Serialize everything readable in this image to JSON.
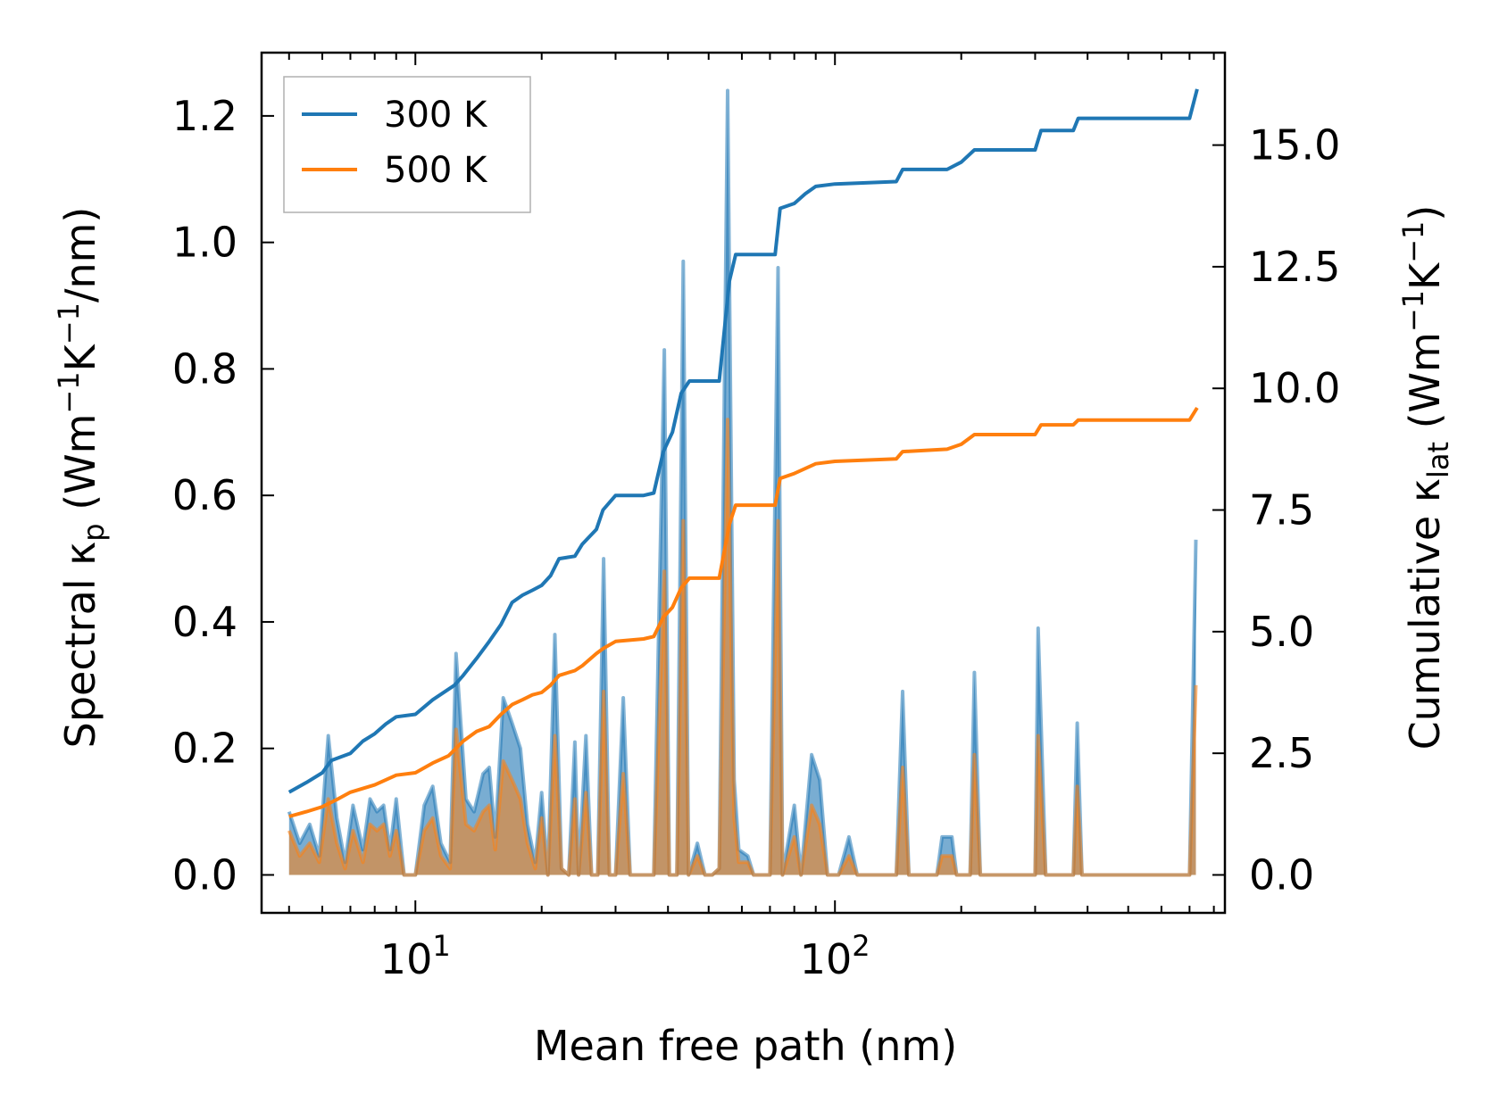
{
  "chart_data": {
    "type": "line",
    "xscale": "log",
    "xlabel": "Mean free path (nm)",
    "xlim": [
      4.3,
      850
    ],
    "xticks": [
      {
        "value": 10,
        "base": "10",
        "exp": "1"
      },
      {
        "value": 100,
        "base": "10",
        "exp": "2"
      }
    ],
    "ylabel_left": {
      "pre": "Spectral κ",
      "sub": "p",
      "post": " (Wm",
      "sup1": "−1",
      "mid": "K",
      "sup2": "−1",
      "end": "/nm)"
    },
    "ylim_left": [
      -0.06,
      1.3
    ],
    "yticks_left": [
      "0.0",
      "0.2",
      "0.4",
      "0.6",
      "0.8",
      "1.0",
      "1.2"
    ],
    "ylabel_right": {
      "pre": "Cumulative κ",
      "sub": "lat",
      "post": " (Wm",
      "sup1": "−1",
      "mid": "K",
      "sup2": "−1",
      "end": ")"
    },
    "ylim_right": [
      -0.78,
      16.9
    ],
    "yticks_right": [
      "0.0",
      "2.5",
      "5.0",
      "7.5",
      "10.0",
      "12.5",
      "15.0"
    ],
    "legend": {
      "position": "top-left"
    },
    "series": [
      {
        "name": "300 K",
        "color": "#1f77b4",
        "cumulative": [
          [
            5,
            1.7
          ],
          [
            5.5,
            1.9
          ],
          [
            6,
            2.1
          ],
          [
            6.3,
            2.35
          ],
          [
            7,
            2.5
          ],
          [
            7.5,
            2.75
          ],
          [
            8,
            2.9
          ],
          [
            8.5,
            3.1
          ],
          [
            9,
            3.25
          ],
          [
            10,
            3.3
          ],
          [
            11,
            3.6
          ],
          [
            12.4,
            3.9
          ],
          [
            13,
            4.1
          ],
          [
            14,
            4.45
          ],
          [
            15,
            4.8
          ],
          [
            16,
            5.15
          ],
          [
            17,
            5.6
          ],
          [
            18,
            5.75
          ],
          [
            19,
            5.85
          ],
          [
            20,
            5.95
          ],
          [
            21,
            6.15
          ],
          [
            22,
            6.5
          ],
          [
            24,
            6.55
          ],
          [
            25,
            6.8
          ],
          [
            27,
            7.1
          ],
          [
            28,
            7.5
          ],
          [
            30,
            7.8
          ],
          [
            35,
            7.8
          ],
          [
            37,
            7.85
          ],
          [
            39,
            8.7
          ],
          [
            41,
            9.1
          ],
          [
            43,
            9.9
          ],
          [
            45,
            10.15
          ],
          [
            53,
            10.15
          ],
          [
            56,
            12.2
          ],
          [
            58,
            12.75
          ],
          [
            72,
            12.75
          ],
          [
            74,
            13.7
          ],
          [
            80,
            13.8
          ],
          [
            85,
            14
          ],
          [
            90,
            14.15
          ],
          [
            100,
            14.2
          ],
          [
            140,
            14.25
          ],
          [
            145,
            14.5
          ],
          [
            185,
            14.5
          ],
          [
            200,
            14.65
          ],
          [
            215,
            14.9
          ],
          [
            300,
            14.9
          ],
          [
            310,
            15.3
          ],
          [
            370,
            15.3
          ],
          [
            380,
            15.55
          ],
          [
            700,
            15.55
          ],
          [
            730,
            16.15
          ]
        ],
        "spectral": [
          [
            5,
            0.1
          ],
          [
            5.3,
            0.05
          ],
          [
            5.6,
            0.08
          ],
          [
            5.9,
            0.03
          ],
          [
            6.2,
            0.22
          ],
          [
            6.5,
            0.09
          ],
          [
            6.8,
            0.02
          ],
          [
            7.1,
            0.11
          ],
          [
            7.5,
            0.04
          ],
          [
            7.8,
            0.12
          ],
          [
            8.1,
            0.1
          ],
          [
            8.4,
            0.11
          ],
          [
            8.7,
            0.04
          ],
          [
            9,
            0.12
          ],
          [
            9.4,
            0
          ],
          [
            10,
            0
          ],
          [
            10.5,
            0.11
          ],
          [
            11,
            0.14
          ],
          [
            11.5,
            0.05
          ],
          [
            12.1,
            0.02
          ],
          [
            12.5,
            0.35
          ],
          [
            13.2,
            0.12
          ],
          [
            13.8,
            0.1
          ],
          [
            14.5,
            0.16
          ],
          [
            15,
            0.17
          ],
          [
            15.5,
            0.06
          ],
          [
            16.2,
            0.28
          ],
          [
            17,
            0.24
          ],
          [
            17.8,
            0.2
          ],
          [
            18.5,
            0.08
          ],
          [
            19.3,
            0.02
          ],
          [
            20,
            0.13
          ],
          [
            20.7,
            0
          ],
          [
            21.5,
            0.38
          ],
          [
            22.3,
            0.01
          ],
          [
            23.2,
            0
          ],
          [
            24,
            0.21
          ],
          [
            24.5,
            0
          ],
          [
            25.5,
            0.22
          ],
          [
            26.3,
            0
          ],
          [
            27.2,
            0
          ],
          [
            28.1,
            0.5
          ],
          [
            29,
            0
          ],
          [
            30,
            0
          ],
          [
            31.3,
            0.28
          ],
          [
            32.5,
            0
          ],
          [
            35,
            0
          ],
          [
            37,
            0
          ],
          [
            39.2,
            0.83
          ],
          [
            40.3,
            0
          ],
          [
            42,
            0
          ],
          [
            43.5,
            0.97
          ],
          [
            44.8,
            0
          ],
          [
            47,
            0.05
          ],
          [
            49,
            0
          ],
          [
            51,
            0
          ],
          [
            53,
            0.01
          ],
          [
            55.5,
            1.24
          ],
          [
            57.5,
            0.15
          ],
          [
            59,
            0.04
          ],
          [
            62,
            0.03
          ],
          [
            64,
            0
          ],
          [
            70,
            0
          ],
          [
            73.2,
            0.96
          ],
          [
            75,
            0
          ],
          [
            80,
            0.11
          ],
          [
            83,
            0
          ],
          [
            88,
            0.19
          ],
          [
            92,
            0.15
          ],
          [
            96,
            0
          ],
          [
            102,
            0
          ],
          [
            108,
            0.06
          ],
          [
            113,
            0
          ],
          [
            140,
            0
          ],
          [
            145,
            0.29
          ],
          [
            150,
            0
          ],
          [
            175,
            0
          ],
          [
            180,
            0.06
          ],
          [
            190,
            0.06
          ],
          [
            195,
            0
          ],
          [
            210,
            0
          ],
          [
            215,
            0.32
          ],
          [
            222,
            0
          ],
          [
            300,
            0
          ],
          [
            305,
            0.39
          ],
          [
            318,
            0
          ],
          [
            370,
            0
          ],
          [
            378,
            0.24
          ],
          [
            388,
            0
          ],
          [
            700,
            0
          ],
          [
            725,
            0.53
          ]
        ]
      },
      {
        "name": "500 K",
        "color": "#ff7f0e",
        "cumulative": [
          [
            5,
            1.2
          ],
          [
            5.5,
            1.3
          ],
          [
            6,
            1.4
          ],
          [
            6.5,
            1.55
          ],
          [
            7,
            1.7
          ],
          [
            8,
            1.85
          ],
          [
            9,
            2.05
          ],
          [
            10,
            2.1
          ],
          [
            11,
            2.3
          ],
          [
            12,
            2.45
          ],
          [
            13,
            2.75
          ],
          [
            14,
            2.95
          ],
          [
            15,
            3.05
          ],
          [
            16,
            3.3
          ],
          [
            17,
            3.5
          ],
          [
            18,
            3.6
          ],
          [
            19,
            3.7
          ],
          [
            20,
            3.75
          ],
          [
            21,
            3.9
          ],
          [
            22,
            4.1
          ],
          [
            24,
            4.2
          ],
          [
            25,
            4.3
          ],
          [
            27,
            4.55
          ],
          [
            28,
            4.65
          ],
          [
            30,
            4.8
          ],
          [
            35,
            4.85
          ],
          [
            37,
            4.9
          ],
          [
            39,
            5.3
          ],
          [
            41,
            5.5
          ],
          [
            43,
            5.9
          ],
          [
            45,
            6.1
          ],
          [
            53,
            6.1
          ],
          [
            56,
            7.2
          ],
          [
            58,
            7.6
          ],
          [
            72,
            7.6
          ],
          [
            74,
            8.15
          ],
          [
            80,
            8.25
          ],
          [
            90,
            8.45
          ],
          [
            100,
            8.5
          ],
          [
            140,
            8.55
          ],
          [
            145,
            8.7
          ],
          [
            185,
            8.75
          ],
          [
            200,
            8.85
          ],
          [
            215,
            9.05
          ],
          [
            300,
            9.05
          ],
          [
            310,
            9.25
          ],
          [
            370,
            9.25
          ],
          [
            380,
            9.35
          ],
          [
            700,
            9.35
          ],
          [
            730,
            9.6
          ]
        ],
        "spectral": [
          [
            5,
            0.07
          ],
          [
            5.3,
            0.03
          ],
          [
            5.6,
            0.05
          ],
          [
            5.9,
            0.02
          ],
          [
            6.2,
            0.12
          ],
          [
            6.5,
            0.05
          ],
          [
            6.8,
            0.01
          ],
          [
            7.1,
            0.07
          ],
          [
            7.5,
            0.02
          ],
          [
            7.8,
            0.08
          ],
          [
            8.1,
            0.07
          ],
          [
            8.4,
            0.08
          ],
          [
            8.7,
            0.03
          ],
          [
            9,
            0.07
          ],
          [
            9.4,
            0
          ],
          [
            10,
            0
          ],
          [
            10.5,
            0.07
          ],
          [
            11,
            0.09
          ],
          [
            11.5,
            0.03
          ],
          [
            12.1,
            0.01
          ],
          [
            12.5,
            0.23
          ],
          [
            13.2,
            0.08
          ],
          [
            13.8,
            0.07
          ],
          [
            14.5,
            0.1
          ],
          [
            15,
            0.11
          ],
          [
            15.5,
            0.04
          ],
          [
            16.2,
            0.18
          ],
          [
            17,
            0.15
          ],
          [
            17.8,
            0.12
          ],
          [
            18.5,
            0.05
          ],
          [
            19.3,
            0.01
          ],
          [
            20,
            0.09
          ],
          [
            20.7,
            0
          ],
          [
            21.5,
            0.22
          ],
          [
            22.3,
            0.01
          ],
          [
            23.2,
            0
          ],
          [
            24,
            0.12
          ],
          [
            24.5,
            0
          ],
          [
            25.5,
            0.13
          ],
          [
            26.3,
            0
          ],
          [
            27.2,
            0
          ],
          [
            28.1,
            0.29
          ],
          [
            29,
            0
          ],
          [
            30,
            0
          ],
          [
            31.3,
            0.16
          ],
          [
            32.5,
            0
          ],
          [
            35,
            0
          ],
          [
            37,
            0
          ],
          [
            39.2,
            0.48
          ],
          [
            40.3,
            0
          ],
          [
            42,
            0
          ],
          [
            43.5,
            0.56
          ],
          [
            44.8,
            0
          ],
          [
            47,
            0.03
          ],
          [
            49,
            0
          ],
          [
            51,
            0
          ],
          [
            53,
            0.01
          ],
          [
            55.5,
            0.72
          ],
          [
            57.5,
            0.09
          ],
          [
            59,
            0.02
          ],
          [
            62,
            0.02
          ],
          [
            64,
            0
          ],
          [
            70,
            0
          ],
          [
            73.2,
            0.56
          ],
          [
            75,
            0
          ],
          [
            80,
            0.06
          ],
          [
            83,
            0
          ],
          [
            88,
            0.11
          ],
          [
            92,
            0.08
          ],
          [
            96,
            0
          ],
          [
            102,
            0
          ],
          [
            108,
            0.03
          ],
          [
            113,
            0
          ],
          [
            140,
            0
          ],
          [
            145,
            0.17
          ],
          [
            150,
            0
          ],
          [
            175,
            0
          ],
          [
            180,
            0.03
          ],
          [
            190,
            0.03
          ],
          [
            195,
            0
          ],
          [
            210,
            0
          ],
          [
            215,
            0.19
          ],
          [
            222,
            0
          ],
          [
            300,
            0
          ],
          [
            305,
            0.22
          ],
          [
            318,
            0
          ],
          [
            370,
            0
          ],
          [
            378,
            0.14
          ],
          [
            388,
            0
          ],
          [
            700,
            0
          ],
          [
            725,
            0.3
          ]
        ]
      }
    ]
  }
}
